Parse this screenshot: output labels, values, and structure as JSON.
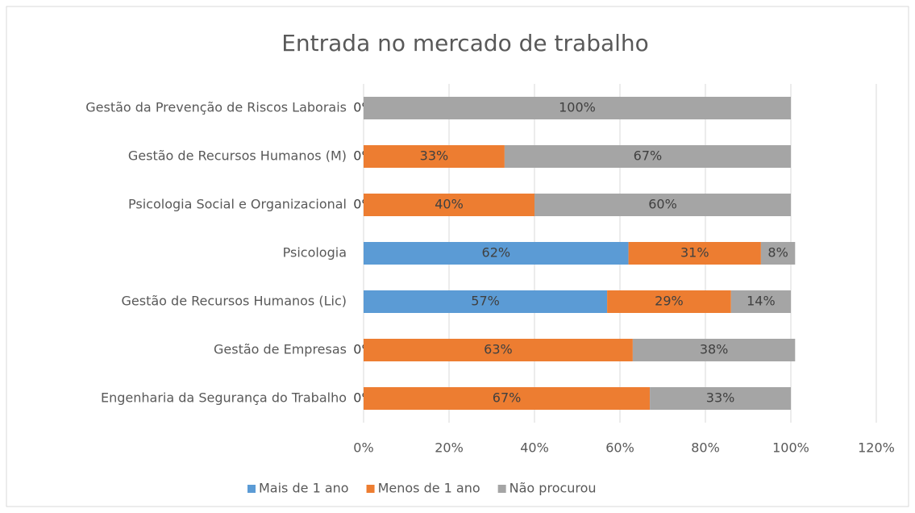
{
  "chart_data": {
    "type": "bar",
    "orientation": "horizontal",
    "stacked": true,
    "title": "Entrada no mercado de trabalho",
    "categories": [
      "Gestão da Prevenção de Riscos Laborais",
      "Gestão de Recursos Humanos (M)",
      "Psicologia Social e Organizacional",
      "Psicologia",
      "Gestão de Recursos Humanos (Lic)",
      "Gestão de Empresas",
      "Engenharia da Segurança do Trabalho"
    ],
    "series": [
      {
        "name": "Mais de 1 ano",
        "color": "#5b9bd5",
        "values": [
          0,
          0,
          0,
          62,
          57,
          0,
          0
        ],
        "value_labels": [
          "0%",
          "0%",
          "0%",
          "62%",
          "57%",
          "0%",
          "0%"
        ]
      },
      {
        "name": "Menos de 1 ano",
        "color": "#ed7d31",
        "values": [
          0,
          33,
          40,
          31,
          29,
          63,
          67
        ],
        "value_labels": [
          null,
          "33%",
          "40%",
          "31%",
          "29%",
          "63%",
          "67%"
        ]
      },
      {
        "name": "Não procurou",
        "color": "#a5a5a5",
        "values": [
          100,
          67,
          60,
          8,
          14,
          38,
          33
        ],
        "value_labels": [
          "100%",
          "67%",
          "60%",
          "8%",
          "14%",
          "38%",
          "33%"
        ]
      }
    ],
    "xlim": [
      0,
      120
    ],
    "xticks": [
      {
        "value": 0,
        "label": "0%"
      },
      {
        "value": 20,
        "label": "20%"
      },
      {
        "value": 40,
        "label": "40%"
      },
      {
        "value": 60,
        "label": "60%"
      },
      {
        "value": 80,
        "label": "80%"
      },
      {
        "value": 100,
        "label": "100%"
      },
      {
        "value": 120,
        "label": "120%"
      }
    ],
    "grid": true,
    "legend": "bottom"
  }
}
